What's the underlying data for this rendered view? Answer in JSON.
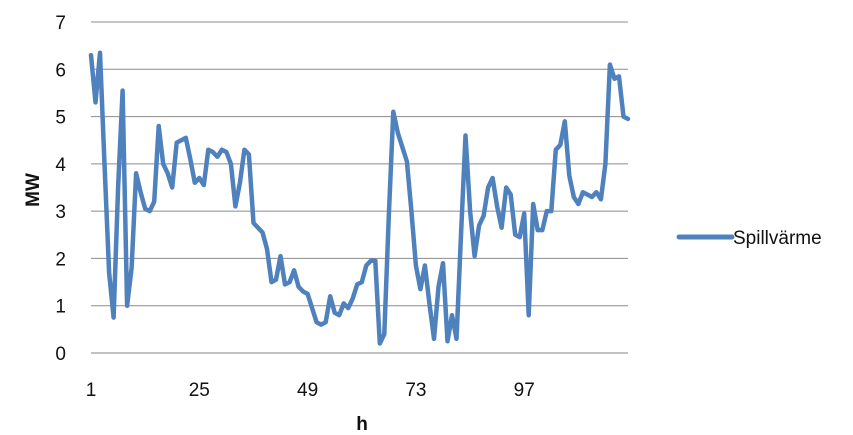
{
  "chart_data": {
    "type": "line",
    "xlabel": "h",
    "ylabel": "MW",
    "x_tick_labels": [
      "1",
      "25",
      "49",
      "73",
      "97"
    ],
    "x_tick_values": [
      1,
      25,
      49,
      73,
      97
    ],
    "xlim": [
      1,
      120
    ],
    "y_tick_labels": [
      "0",
      "1",
      "2",
      "3",
      "4",
      "5",
      "6",
      "7"
    ],
    "ylim": [
      0,
      7
    ],
    "grid": "horizontal",
    "legend_position": "right",
    "series": [
      {
        "name": "Spillvärme",
        "color": "#4F81BD",
        "x": [
          1,
          2,
          3,
          4,
          5,
          6,
          7,
          8,
          9,
          10,
          11,
          12,
          13,
          14,
          15,
          16,
          17,
          18,
          19,
          20,
          21,
          22,
          23,
          24,
          25,
          26,
          27,
          28,
          29,
          30,
          31,
          32,
          33,
          34,
          35,
          36,
          37,
          38,
          39,
          40,
          41,
          42,
          43,
          44,
          45,
          46,
          47,
          48,
          49,
          50,
          51,
          52,
          53,
          54,
          55,
          56,
          57,
          58,
          59,
          60,
          61,
          62,
          63,
          64,
          65,
          66,
          67,
          68,
          69,
          70,
          71,
          72,
          73,
          74,
          75,
          76,
          77,
          78,
          79,
          80,
          81,
          82,
          83,
          84,
          85,
          86,
          87,
          88,
          89,
          90,
          91,
          92,
          93,
          94,
          95,
          96,
          97,
          98,
          99,
          100,
          101,
          102,
          103,
          104,
          105,
          106,
          107,
          108,
          109,
          110,
          111,
          112,
          113,
          114,
          115,
          116,
          117,
          118,
          119,
          120
        ],
        "values": [
          6.3,
          5.3,
          6.35,
          4.0,
          1.7,
          0.75,
          3.5,
          5.55,
          1.0,
          1.8,
          3.8,
          3.4,
          3.05,
          3.0,
          3.2,
          4.8,
          4.0,
          3.8,
          3.5,
          4.45,
          4.5,
          4.55,
          4.1,
          3.6,
          3.7,
          3.55,
          4.3,
          4.25,
          4.15,
          4.3,
          4.25,
          4.0,
          3.1,
          3.6,
          4.3,
          4.2,
          2.75,
          2.65,
          2.55,
          2.2,
          1.5,
          1.55,
          2.05,
          1.45,
          1.5,
          1.75,
          1.4,
          1.3,
          1.25,
          0.95,
          0.65,
          0.6,
          0.65,
          1.2,
          0.85,
          0.8,
          1.05,
          0.95,
          1.15,
          1.45,
          1.5,
          1.85,
          1.95,
          1.95,
          0.2,
          0.4,
          2.9,
          5.1,
          4.65,
          4.35,
          4.05,
          3.0,
          1.85,
          1.35,
          1.85,
          1.05,
          0.3,
          1.4,
          1.9,
          0.25,
          0.8,
          0.3,
          2.5,
          4.6,
          3.0,
          2.05,
          2.7,
          2.9,
          3.5,
          3.7,
          3.1,
          2.65,
          3.5,
          3.35,
          2.5,
          2.45,
          2.95,
          0.8,
          3.15,
          2.6,
          2.6,
          3.0,
          3.0,
          4.3,
          4.4,
          4.9,
          3.75,
          3.3,
          3.15,
          3.4,
          3.35,
          3.3,
          3.4,
          3.25,
          4.0,
          6.1,
          5.8,
          5.85,
          5.0,
          4.95
        ]
      }
    ]
  }
}
